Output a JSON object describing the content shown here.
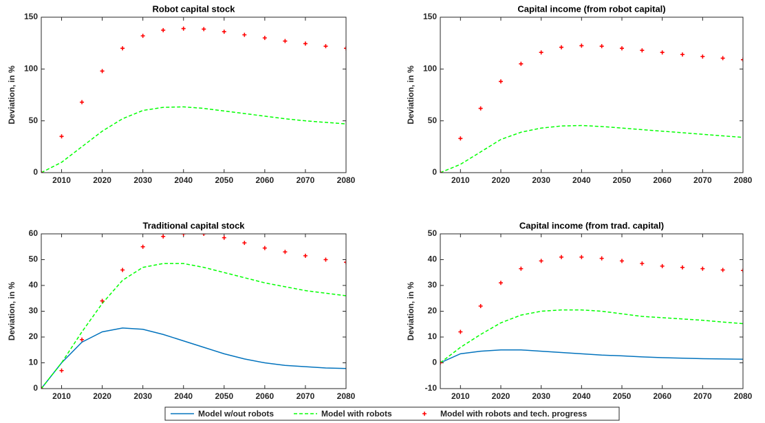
{
  "chart_data": [
    {
      "type": "line",
      "title": "Robot capital stock",
      "ylabel": "Deviation, in %",
      "x": [
        2005,
        2010,
        2015,
        2020,
        2025,
        2030,
        2035,
        2040,
        2045,
        2050,
        2055,
        2060,
        2065,
        2070,
        2075,
        2080
      ],
      "xlim": [
        2005,
        2080
      ],
      "xticks": [
        2010,
        2020,
        2030,
        2040,
        2050,
        2060,
        2070,
        2080
      ],
      "ylim": [
        0,
        150
      ],
      "yticks": [
        0,
        50,
        100,
        150
      ],
      "series": [
        {
          "name": "Model with robots",
          "color": "#00ff00",
          "linestyle": "--",
          "values": [
            0,
            10,
            25,
            40,
            52,
            60,
            63,
            63.5,
            62,
            59.5,
            57,
            54.5,
            52,
            50,
            48.5,
            47
          ]
        },
        {
          "name": "Model with robots and tech. progress",
          "color": "#ff0000",
          "linestyle": "none",
          "marker": "+",
          "values": [
            0,
            35,
            68,
            98,
            120,
            132,
            137.5,
            139,
            138.5,
            136,
            133,
            130,
            127,
            124.5,
            122,
            120
          ]
        }
      ]
    },
    {
      "type": "line",
      "title": "Capital income (from robot capital)",
      "ylabel": "Deviation, in %",
      "x": [
        2005,
        2010,
        2015,
        2020,
        2025,
        2030,
        2035,
        2040,
        2045,
        2050,
        2055,
        2060,
        2065,
        2070,
        2075,
        2080
      ],
      "xlim": [
        2005,
        2080
      ],
      "xticks": [
        2010,
        2020,
        2030,
        2040,
        2050,
        2060,
        2070,
        2080
      ],
      "ylim": [
        0,
        150
      ],
      "yticks": [
        0,
        50,
        100,
        150
      ],
      "series": [
        {
          "name": "Model with robots",
          "color": "#00ff00",
          "linestyle": "--",
          "values": [
            0,
            8,
            20,
            32,
            39,
            43,
            45,
            45.5,
            44.5,
            43,
            41.5,
            40,
            38.5,
            37,
            35.5,
            34
          ]
        },
        {
          "name": "Model with robots and tech. progress",
          "color": "#ff0000",
          "linestyle": "none",
          "marker": "+",
          "values": [
            0,
            33,
            62,
            88,
            105,
            116,
            121,
            122.5,
            122,
            120,
            118,
            116,
            114,
            112,
            110.5,
            109
          ]
        }
      ]
    },
    {
      "type": "line",
      "title": "Traditional capital stock",
      "ylabel": "Deviation, in %",
      "x": [
        2005,
        2010,
        2015,
        2020,
        2025,
        2030,
        2035,
        2040,
        2045,
        2050,
        2055,
        2060,
        2065,
        2070,
        2075,
        2080
      ],
      "xlim": [
        2005,
        2080
      ],
      "xticks": [
        2010,
        2020,
        2030,
        2040,
        2050,
        2060,
        2070,
        2080
      ],
      "ylim": [
        0,
        60
      ],
      "yticks": [
        0,
        10,
        20,
        30,
        40,
        50,
        60
      ],
      "series": [
        {
          "name": "Model w/out robots",
          "color": "#0072bd",
          "linestyle": "-",
          "values": [
            0,
            10,
            18,
            22,
            23.5,
            23,
            21,
            18.5,
            16,
            13.5,
            11.5,
            10,
            9,
            8.5,
            8,
            7.8
          ]
        },
        {
          "name": "Model with robots",
          "color": "#00ff00",
          "linestyle": "--",
          "values": [
            0,
            10,
            22,
            33,
            42,
            47,
            48.5,
            48.5,
            47,
            45,
            43,
            41,
            39.5,
            38,
            37,
            36
          ]
        },
        {
          "name": "Model with robots and tech. progress",
          "color": "#ff0000",
          "linestyle": "none",
          "marker": "+",
          "values": [
            0,
            7,
            19,
            34,
            46,
            55,
            59,
            60,
            60,
            58.5,
            56.5,
            54.5,
            53,
            51.5,
            50,
            49
          ]
        }
      ]
    },
    {
      "type": "line",
      "title": "Capital income (from trad. capital)",
      "ylabel": "Deviation, in %",
      "x": [
        2005,
        2010,
        2015,
        2020,
        2025,
        2030,
        2035,
        2040,
        2045,
        2050,
        2055,
        2060,
        2065,
        2070,
        2075,
        2080
      ],
      "xlim": [
        2005,
        2080
      ],
      "xticks": [
        2010,
        2020,
        2030,
        2040,
        2050,
        2060,
        2070,
        2080
      ],
      "ylim": [
        -10,
        50
      ],
      "yticks": [
        -10,
        0,
        10,
        20,
        30,
        40,
        50
      ],
      "series": [
        {
          "name": "Model w/out robots",
          "color": "#0072bd",
          "linestyle": "-",
          "values": [
            0,
            3.5,
            4.5,
            5,
            5,
            4.5,
            4,
            3.5,
            3,
            2.7,
            2.3,
            2,
            1.8,
            1.6,
            1.5,
            1.4
          ]
        },
        {
          "name": "Model with robots",
          "color": "#00ff00",
          "linestyle": "--",
          "values": [
            0,
            6,
            11,
            15.5,
            18.5,
            20,
            20.5,
            20.5,
            20,
            19,
            18,
            17.5,
            17,
            16.5,
            15.8,
            15.2
          ]
        },
        {
          "name": "Model with robots and tech. progress",
          "color": "#ff0000",
          "linestyle": "none",
          "marker": "+",
          "values": [
            0,
            12,
            22,
            31,
            36.5,
            39.5,
            41,
            41,
            40.5,
            39.5,
            38.5,
            37.5,
            37,
            36.5,
            36,
            35.8
          ]
        }
      ]
    }
  ]
}
